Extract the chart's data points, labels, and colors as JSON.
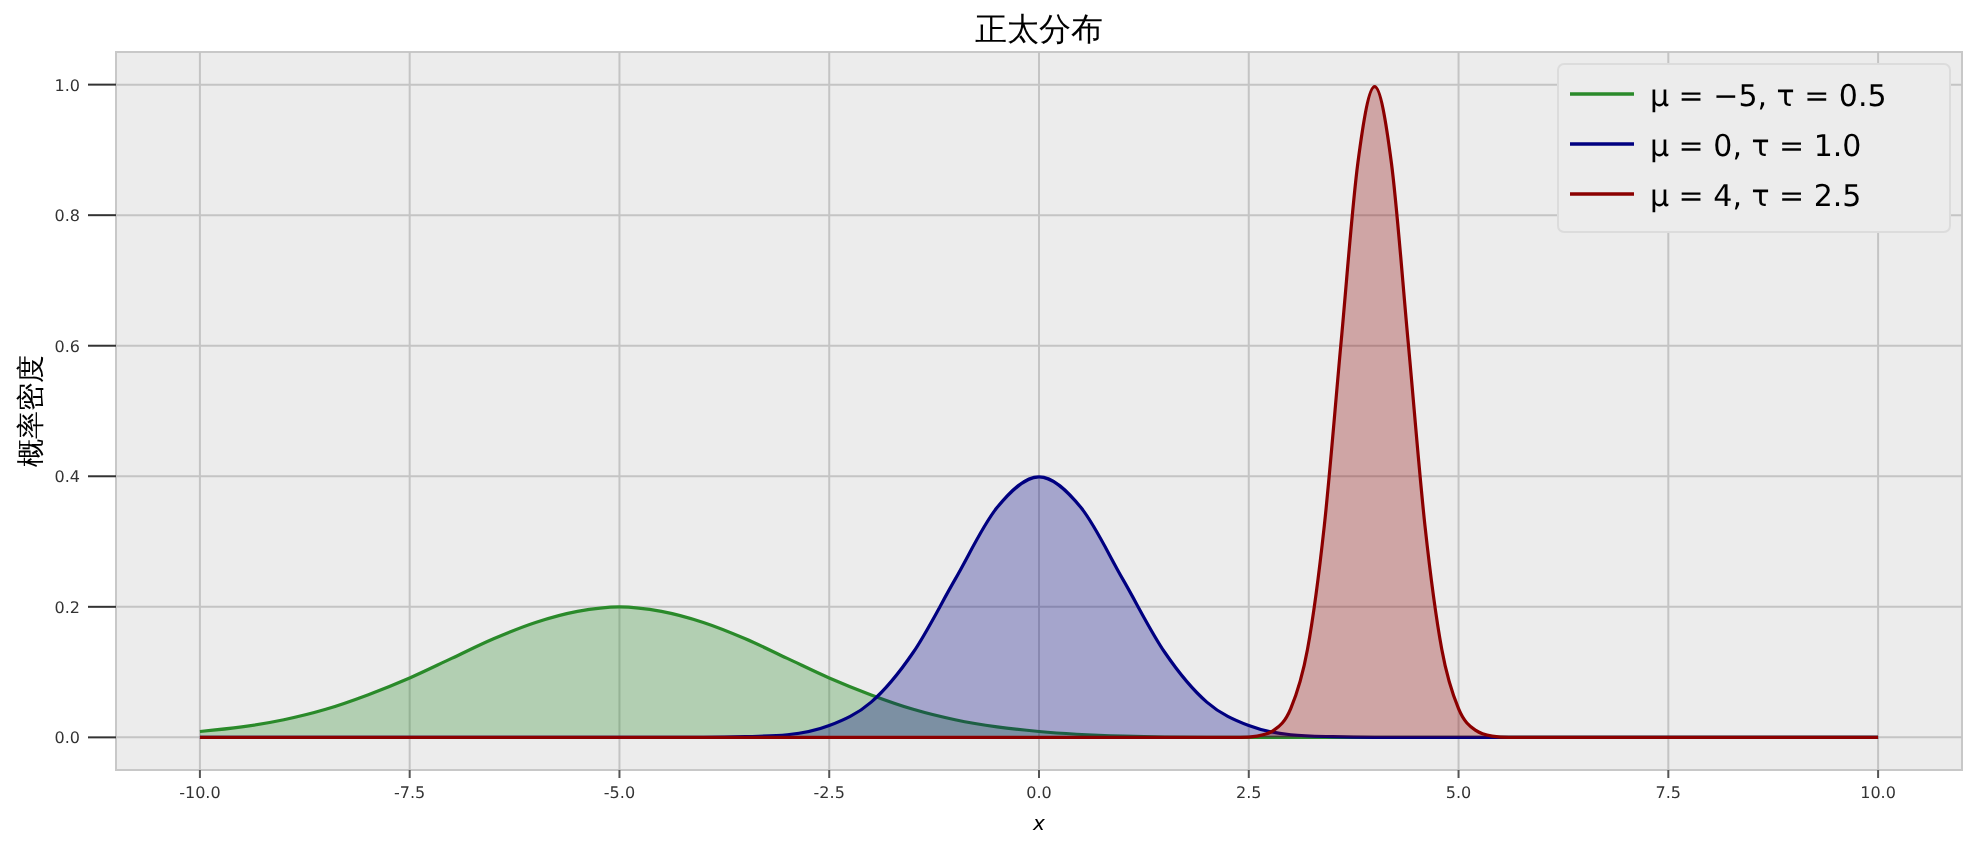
{
  "chart_data": {
    "type": "area",
    "title": "正太分布",
    "xlabel": "x",
    "ylabel": "概率密度",
    "xlim": [
      -11,
      11
    ],
    "ylim": [
      -0.05,
      1.05
    ],
    "xticks": [
      {
        "value": -10,
        "label": "-10.0"
      },
      {
        "value": -7.5,
        "label": "-7.5"
      },
      {
        "value": -5,
        "label": "-5.0"
      },
      {
        "value": -2.5,
        "label": "-2.5"
      },
      {
        "value": 0,
        "label": "0.0"
      },
      {
        "value": 2.5,
        "label": "2.5"
      },
      {
        "value": 5,
        "label": "5.0"
      },
      {
        "value": 7.5,
        "label": "7.5"
      },
      {
        "value": 10,
        "label": "10.0"
      }
    ],
    "yticks": [
      {
        "value": 0,
        "label": "0.0"
      },
      {
        "value": 0.2,
        "label": "0.2"
      },
      {
        "value": 0.4,
        "label": "0.4"
      },
      {
        "value": 0.6,
        "label": "0.6"
      },
      {
        "value": 0.8,
        "label": "0.8"
      },
      {
        "value": 1,
        "label": "1.0"
      }
    ],
    "grid": true,
    "legend": "top right",
    "line_style": "solid",
    "series": [
      {
        "name": "μ = −5,  τ = 0.5",
        "color": "#2a8a2a",
        "x": [
          -10,
          -9.5,
          -9,
          -8.5,
          -8,
          -7.5,
          -7,
          -6.5,
          -6,
          -5.5,
          -5,
          -4.5,
          -4,
          -3.5,
          -3,
          -2.5,
          -2,
          -1.5,
          -1,
          -0.5,
          0,
          1,
          2,
          10
        ],
        "values": [
          0.009,
          0.016,
          0.027,
          0.043,
          0.065,
          0.091,
          0.121,
          0.151,
          0.176,
          0.193,
          0.2,
          0.193,
          0.176,
          0.151,
          0.121,
          0.091,
          0.065,
          0.043,
          0.027,
          0.016,
          0.009,
          0.002,
          0,
          0
        ]
      },
      {
        "name": "μ = 0,  τ = 1.0",
        "color": "#000080",
        "x": [
          -10,
          -4,
          -3.5,
          -3,
          -2.5,
          -2,
          -1.5,
          -1,
          -0.5,
          0,
          0.5,
          1,
          1.5,
          2,
          2.5,
          3,
          3.5,
          4,
          10
        ],
        "values": [
          0,
          0,
          0.001,
          0.004,
          0.018,
          0.054,
          0.13,
          0.242,
          0.352,
          0.399,
          0.352,
          0.242,
          0.13,
          0.054,
          0.018,
          0.004,
          0.001,
          0,
          0
        ]
      },
      {
        "name": "μ = 4,  τ = 2.5",
        "color": "#8b0000",
        "x": [
          -10,
          2.4,
          2.6,
          2.8,
          3,
          3.2,
          3.4,
          3.6,
          3.8,
          4,
          4.2,
          4.4,
          4.6,
          4.8,
          5,
          5.2,
          5.4,
          5.6,
          10
        ],
        "values": [
          0,
          0,
          0.002,
          0.011,
          0.044,
          0.135,
          0.324,
          0.605,
          0.88,
          0.997,
          0.88,
          0.605,
          0.324,
          0.135,
          0.044,
          0.011,
          0.002,
          0,
          0
        ]
      }
    ]
  }
}
